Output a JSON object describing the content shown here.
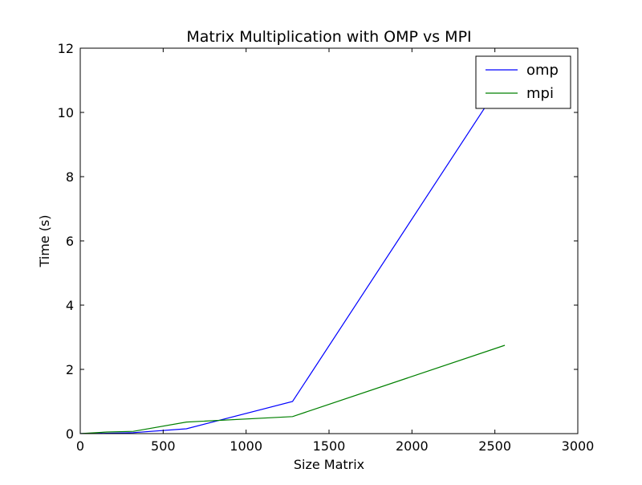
{
  "chart_data": {
    "type": "line",
    "title": "Matrix Multiplication with OMP vs MPI",
    "xlabel": "Size Matrix",
    "ylabel": "Time (s)",
    "xlim": [
      0,
      3000
    ],
    "ylim": [
      0,
      12
    ],
    "xticks": [
      0,
      500,
      1000,
      1500,
      2000,
      2500,
      3000
    ],
    "yticks": [
      0,
      2,
      4,
      6,
      8,
      10,
      12
    ],
    "xtick_labels": [
      "0",
      "500",
      "1000",
      "1500",
      "2000",
      "2500",
      "3000"
    ],
    "ytick_labels": [
      "0",
      "2",
      "4",
      "6",
      "8",
      "10",
      "12"
    ],
    "grid": false,
    "legend": {
      "position": "top-right"
    },
    "series": [
      {
        "name": "omp",
        "color": "#0000ff",
        "x": [
          0,
          160,
          320,
          640,
          1280,
          2560
        ],
        "y": [
          0.0,
          0.01,
          0.03,
          0.15,
          1.0,
          11.1
        ]
      },
      {
        "name": "mpi",
        "color": "#008000",
        "x": [
          0,
          160,
          320,
          640,
          1280,
          2560
        ],
        "y": [
          0.0,
          0.05,
          0.07,
          0.36,
          0.53,
          2.75
        ]
      }
    ]
  }
}
